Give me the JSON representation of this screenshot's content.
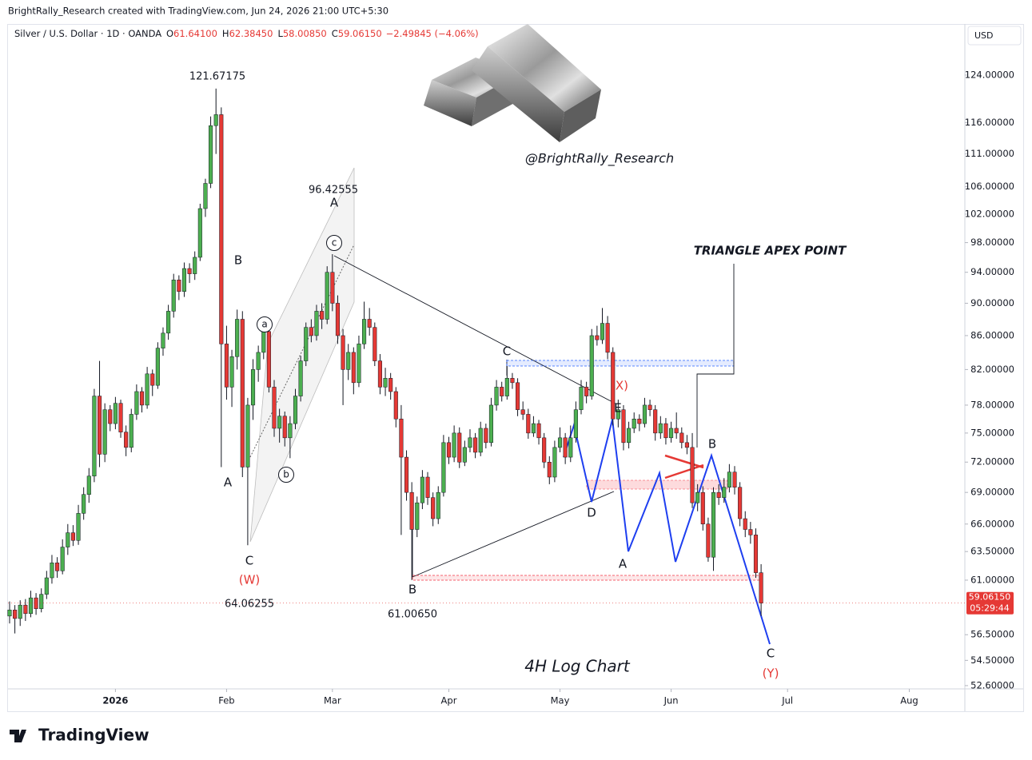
{
  "header": {
    "attribution": "BrightRally_Research created with TradingView.com, Jun 24, 2026 21:00 UTC+5:30",
    "symbol": "Silver / U.S. Dollar · 1D · OANDA",
    "ohlc_fields": [
      {
        "key": "O",
        "value": "61.64100"
      },
      {
        "key": "H",
        "value": "62.38450"
      },
      {
        "key": "L",
        "value": "58.00850"
      },
      {
        "key": "C",
        "value": "59.06150"
      }
    ],
    "change": "−2.49845 (−4.06%)",
    "currency": "USD"
  },
  "footer": {
    "brand": "TradingView"
  },
  "chart_data": {
    "type": "candlestick",
    "log_scale": true,
    "up_color": "#4caf50",
    "down_color": "#e53935",
    "ylim": [
      52.36,
      133.23
    ],
    "yticks": [
      {
        "value": 124,
        "label": "124.00000"
      },
      {
        "value": 116,
        "label": "116.00000"
      },
      {
        "value": 111,
        "label": "111.00000"
      },
      {
        "value": 106,
        "label": "106.00000"
      },
      {
        "value": 102,
        "label": "102.00000"
      },
      {
        "value": 98,
        "label": "98.00000"
      },
      {
        "value": 94,
        "label": "94.00000"
      },
      {
        "value": 90,
        "label": "90.00000"
      },
      {
        "value": 86,
        "label": "86.00000"
      },
      {
        "value": 82,
        "label": "82.00000"
      },
      {
        "value": 78,
        "label": "78.00000"
      },
      {
        "value": 75,
        "label": "75.00000"
      },
      {
        "value": 72,
        "label": "72.00000"
      },
      {
        "value": 69,
        "label": "69.00000"
      },
      {
        "value": 66,
        "label": "66.00000"
      },
      {
        "value": 63.5,
        "label": "63.50000"
      },
      {
        "value": 61,
        "label": "61.00000"
      },
      {
        "value": 56.5,
        "label": "56.50000"
      },
      {
        "value": 54.5,
        "label": "54.50000"
      },
      {
        "value": 52.6,
        "label": "52.60000"
      }
    ],
    "xlim": [
      -0.3,
      180.5
    ],
    "xticks": [
      {
        "value": 20,
        "label": "2026"
      },
      {
        "value": 41,
        "label": "Feb"
      },
      {
        "value": 61,
        "label": "Mar"
      },
      {
        "value": 83,
        "label": "Apr"
      },
      {
        "value": 104,
        "label": "May"
      },
      {
        "value": 125,
        "label": "Jun"
      },
      {
        "value": 147,
        "label": "Jul"
      },
      {
        "value": 170,
        "label": "Aug"
      }
    ],
    "last_price": {
      "label": "59.06150",
      "countdown": "05:29:44"
    },
    "annotations": [
      "121.67175",
      "B",
      "A",
      "C",
      "(W)",
      "64.06255",
      "a",
      "b",
      "96.42555",
      "A",
      "c",
      "C",
      "(X)",
      "E",
      "D",
      "A",
      "B",
      "61.00650",
      "B",
      "C",
      "(Y)",
      "TRIANGLE APEX POINT",
      "@BrightRally_Research",
      "4H Log Chart"
    ],
    "ohlc": [
      [
        58.0,
        59.2,
        57.4,
        58.5
      ],
      [
        58.5,
        58.9,
        56.6,
        57.8
      ],
      [
        57.8,
        59.3,
        57.2,
        58.9
      ],
      [
        58.9,
        59.4,
        57.6,
        58.2
      ],
      [
        58.2,
        60.1,
        57.9,
        59.5
      ],
      [
        59.5,
        59.9,
        58.1,
        58.6
      ],
      [
        58.6,
        60.3,
        58.3,
        59.8
      ],
      [
        59.8,
        61.8,
        59.4,
        61.2
      ],
      [
        61.2,
        63.2,
        60.7,
        62.5
      ],
      [
        62.5,
        63.0,
        61.2,
        61.8
      ],
      [
        61.8,
        64.6,
        61.5,
        63.9
      ],
      [
        63.9,
        66.0,
        63.2,
        65.2
      ],
      [
        65.2,
        65.9,
        64.0,
        64.5
      ],
      [
        64.5,
        67.8,
        64.1,
        67.0
      ],
      [
        67.0,
        69.5,
        66.4,
        68.8
      ],
      [
        68.8,
        71.4,
        68.0,
        70.6
      ],
      [
        70.6,
        79.8,
        70.0,
        79.0
      ],
      [
        79.0,
        83.0,
        71.5,
        72.8
      ],
      [
        72.8,
        78.2,
        72.0,
        77.5
      ],
      [
        77.5,
        78.0,
        75.2,
        76.0
      ],
      [
        76.0,
        78.9,
        75.4,
        78.2
      ],
      [
        78.2,
        78.6,
        74.5,
        75.1
      ],
      [
        75.1,
        75.8,
        72.6,
        73.5
      ],
      [
        73.5,
        77.6,
        73.0,
        77.0
      ],
      [
        77.0,
        80.3,
        76.4,
        79.5
      ],
      [
        79.5,
        80.0,
        77.2,
        78.0
      ],
      [
        78.0,
        82.3,
        77.6,
        81.5
      ],
      [
        81.5,
        82.0,
        79.0,
        80.2
      ],
      [
        80.2,
        85.2,
        79.8,
        84.5
      ],
      [
        84.5,
        87.0,
        83.6,
        86.3
      ],
      [
        86.3,
        89.8,
        85.5,
        89.0
      ],
      [
        89.0,
        93.8,
        88.2,
        93.0
      ],
      [
        93.0,
        93.6,
        90.4,
        91.5
      ],
      [
        91.5,
        95.3,
        90.8,
        94.5
      ],
      [
        94.5,
        95.2,
        92.6,
        93.8
      ],
      [
        93.8,
        96.8,
        93.0,
        96.0
      ],
      [
        96.0,
        103.5,
        95.5,
        102.8
      ],
      [
        102.8,
        107.2,
        101.6,
        106.5
      ],
      [
        106.5,
        117.0,
        105.8,
        115.5
      ],
      [
        115.5,
        121.67175,
        111.0,
        117.3
      ],
      [
        117.3,
        118.5,
        71.5,
        85.0
      ],
      [
        85.0,
        87.2,
        78.6,
        80.0
      ],
      [
        80.0,
        84.3,
        77.8,
        83.5
      ],
      [
        83.5,
        89.2,
        82.0,
        88.0
      ],
      [
        88.0,
        89.0,
        70.5,
        71.5
      ],
      [
        71.5,
        78.8,
        64.06255,
        78.0
      ],
      [
        78.0,
        83.2,
        76.4,
        82.0
      ],
      [
        82.0,
        84.8,
        80.6,
        84.0
      ],
      [
        84.0,
        87.2,
        83.2,
        86.5
      ],
      [
        86.5,
        87.0,
        79.4,
        80.0
      ],
      [
        80.0,
        80.8,
        74.6,
        75.5
      ],
      [
        75.5,
        77.6,
        74.0,
        76.8
      ],
      [
        76.8,
        77.3,
        73.6,
        74.5
      ],
      [
        74.5,
        76.8,
        72.4,
        76.0
      ],
      [
        76.0,
        79.8,
        75.4,
        79.0
      ],
      [
        79.0,
        83.6,
        78.4,
        83.0
      ],
      [
        83.0,
        87.6,
        82.4,
        87.0
      ],
      [
        87.0,
        88.0,
        85.2,
        86.0
      ],
      [
        86.0,
        89.8,
        85.4,
        89.0
      ],
      [
        89.0,
        90.0,
        86.8,
        88.0
      ],
      [
        88.0,
        94.8,
        87.4,
        94.0
      ],
      [
        94.0,
        96.42555,
        89.0,
        90.0
      ],
      [
        90.0,
        91.0,
        85.0,
        86.0
      ],
      [
        86.0,
        86.8,
        78.0,
        82.0
      ],
      [
        82.0,
        85.0,
        80.8,
        84.0
      ],
      [
        84.0,
        84.6,
        79.2,
        80.5
      ],
      [
        80.5,
        86.0,
        80.0,
        85.0
      ],
      [
        85.0,
        90.2,
        84.4,
        88.0
      ],
      [
        88.0,
        89.4,
        86.0,
        87.0
      ],
      [
        87.0,
        87.6,
        82.4,
        83.0
      ],
      [
        83.0,
        83.8,
        79.2,
        80.0
      ],
      [
        80.0,
        82.2,
        79.0,
        81.0
      ],
      [
        81.0,
        81.6,
        78.6,
        79.5
      ],
      [
        79.5,
        80.0,
        75.6,
        76.5
      ],
      [
        76.5,
        78.0,
        65.0,
        72.5
      ],
      [
        72.5,
        73.2,
        68.2,
        69.0
      ],
      [
        69.0,
        70.0,
        61.0065,
        65.5
      ],
      [
        65.5,
        68.6,
        64.8,
        68.0
      ],
      [
        68.0,
        71.2,
        67.4,
        70.5
      ],
      [
        70.5,
        71.0,
        67.8,
        68.5
      ],
      [
        68.5,
        69.0,
        65.8,
        66.5
      ],
      [
        66.5,
        69.6,
        66.0,
        69.0
      ],
      [
        69.0,
        74.8,
        68.6,
        74.0
      ],
      [
        74.0,
        74.6,
        71.8,
        72.5
      ],
      [
        72.5,
        75.8,
        72.0,
        75.0
      ],
      [
        75.0,
        75.6,
        71.4,
        72.0
      ],
      [
        72.0,
        74.2,
        71.6,
        73.5
      ],
      [
        73.5,
        75.4,
        73.0,
        74.5
      ],
      [
        74.5,
        75.0,
        72.4,
        73.0
      ],
      [
        73.0,
        76.2,
        72.6,
        75.5
      ],
      [
        75.5,
        76.0,
        73.4,
        74.0
      ],
      [
        74.0,
        78.8,
        73.6,
        78.0
      ],
      [
        78.0,
        80.8,
        77.4,
        80.0
      ],
      [
        80.0,
        80.6,
        78.4,
        79.0
      ],
      [
        79.0,
        82.4,
        78.6,
        81.0
      ],
      [
        81.0,
        81.6,
        79.8,
        80.5
      ],
      [
        80.5,
        81.0,
        76.8,
        77.5
      ],
      [
        77.5,
        78.4,
        76.4,
        77.0
      ],
      [
        77.0,
        77.6,
        74.4,
        75.0
      ],
      [
        75.0,
        76.8,
        74.6,
        76.0
      ],
      [
        76.0,
        76.4,
        73.8,
        74.5
      ],
      [
        74.5,
        75.0,
        71.4,
        72.0
      ],
      [
        72.0,
        72.6,
        69.8,
        70.5
      ],
      [
        70.5,
        74.2,
        70.0,
        73.5
      ],
      [
        73.5,
        75.6,
        73.0,
        74.5
      ],
      [
        74.5,
        75.0,
        71.8,
        72.5
      ],
      [
        72.5,
        75.8,
        72.0,
        74.5
      ],
      [
        74.5,
        78.4,
        74.0,
        77.5
      ],
      [
        77.5,
        80.8,
        77.0,
        80.0
      ],
      [
        80.0,
        80.6,
        78.2,
        79.0
      ],
      [
        79.0,
        86.8,
        78.6,
        86.0
      ],
      [
        86.0,
        87.2,
        84.8,
        85.5
      ],
      [
        85.5,
        89.4,
        85.0,
        87.5
      ],
      [
        87.5,
        88.4,
        83.2,
        84.0
      ],
      [
        84.0,
        84.6,
        75.8,
        76.5
      ],
      [
        76.5,
        78.6,
        75.6,
        77.5
      ],
      [
        77.5,
        78.0,
        73.2,
        74.0
      ],
      [
        74.0,
        76.2,
        73.4,
        75.5
      ],
      [
        75.5,
        77.2,
        75.0,
        76.5
      ],
      [
        76.5,
        77.0,
        75.2,
        76.0
      ],
      [
        76.0,
        78.8,
        75.6,
        78.0
      ],
      [
        78.0,
        78.6,
        76.8,
        77.5
      ],
      [
        77.5,
        78.0,
        74.2,
        75.0
      ],
      [
        75.0,
        76.8,
        74.4,
        76.0
      ],
      [
        76.0,
        76.6,
        73.8,
        74.5
      ],
      [
        74.5,
        76.2,
        74.0,
        75.5
      ],
      [
        75.5,
        77.2,
        74.4,
        75.0
      ],
      [
        75.0,
        75.6,
        73.4,
        74.0
      ],
      [
        74.0,
        74.8,
        72.8,
        73.5
      ],
      [
        73.5,
        75.0,
        67.5,
        68.0
      ],
      [
        68.0,
        69.8,
        67.2,
        69.0
      ],
      [
        69.0,
        69.6,
        65.4,
        66.0
      ],
      [
        66.0,
        66.6,
        62.6,
        63.0
      ],
      [
        63.0,
        69.5,
        61.8,
        69.0
      ],
      [
        69.0,
        69.8,
        67.8,
        68.5
      ],
      [
        68.5,
        70.4,
        68.0,
        69.5
      ],
      [
        69.5,
        71.8,
        69.0,
        71.0
      ],
      [
        71.0,
        71.6,
        68.8,
        69.5
      ],
      [
        69.5,
        70.0,
        65.8,
        66.5
      ],
      [
        66.5,
        67.2,
        64.8,
        65.5
      ],
      [
        65.5,
        66.2,
        64.2,
        65.0
      ],
      [
        65.0,
        65.6,
        61.2,
        61.641
      ],
      [
        61.641,
        62.3845,
        58.0085,
        59.0615
      ]
    ]
  }
}
